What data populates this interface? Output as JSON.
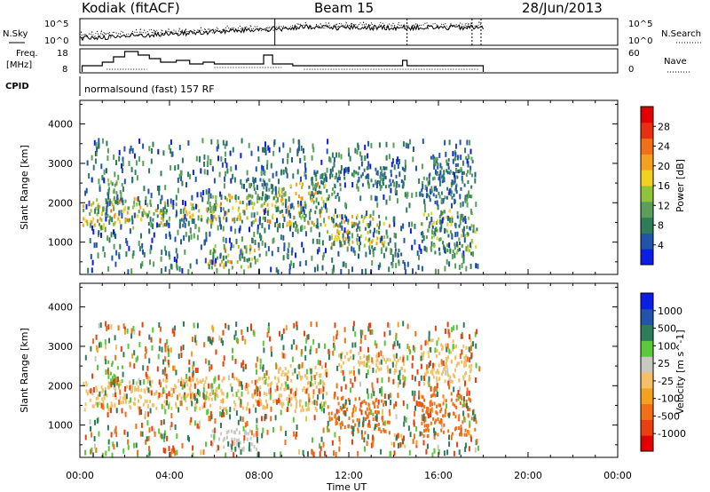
{
  "header": {
    "station": "Kodiak (fitACF)",
    "beam": "Beam 15",
    "date": "28/Jun/2013"
  },
  "strips": {
    "nsky_label": "N.Sky",
    "nsearch_label": "N.Search",
    "freq_label_1": "Freq.",
    "freq_label_2": "[MHz]",
    "nave_label": "Nave",
    "cpid_label": "CPID",
    "cpid_text": "normalsound (fast) 157 RF",
    "noise_ticks": [
      "10^5",
      "10^0"
    ],
    "freq_ticks": [
      "18",
      "8"
    ],
    "nave_ticks": [
      "60",
      "0"
    ]
  },
  "colors": {
    "power": [
      "#0a1ee6",
      "#2255aa",
      "#2e7d5a",
      "#5a9e5a",
      "#8fc43a",
      "#f0d020",
      "#f5a020",
      "#f07018",
      "#e83010",
      "#e00000"
    ],
    "velocity": [
      "#e00000",
      "#e84010",
      "#f07018",
      "#f5a020",
      "#f3c068",
      "#c8c8c0",
      "#5ac83a",
      "#2e7d5a",
      "#2255aa",
      "#0a1ee6"
    ]
  },
  "chart_data": [
    {
      "type": "heatmap",
      "title": "Power",
      "ylabel": "Slant Range [km]",
      "xlabel": "Time UT",
      "x_ticks": [
        "00:00",
        "04:00",
        "08:00",
        "12:00",
        "16:00",
        "20:00",
        "00:00"
      ],
      "y_ticks": [
        "1000",
        "2000",
        "3000",
        "4000"
      ],
      "xlim_hours": [
        0,
        24
      ],
      "ylim_km": [
        180,
        4600
      ],
      "colorbar_label": "Power [dB]",
      "colorbar_ticks": [
        "4",
        "8",
        "12",
        "16",
        "20",
        "24",
        "28"
      ],
      "colorbar_range": [
        0,
        30
      ],
      "regions": [
        {
          "t0": 0.1,
          "t1": 3.0,
          "r0": 1350,
          "r1": 2100,
          "v0": 10,
          "v1": 22
        },
        {
          "t0": 1.2,
          "t1": 1.9,
          "r0": 2000,
          "r1": 2600,
          "v0": 6,
          "v1": 14
        },
        {
          "t0": 3.0,
          "t1": 6.0,
          "r0": 1400,
          "r1": 2000,
          "v0": 6,
          "v1": 20
        },
        {
          "t0": 5.8,
          "t1": 8.8,
          "r0": 1500,
          "r1": 2200,
          "v0": 8,
          "v1": 22
        },
        {
          "t0": 5.6,
          "t1": 8.0,
          "r0": 350,
          "r1": 900,
          "v0": 6,
          "v1": 24
        },
        {
          "t0": 7.4,
          "t1": 8.8,
          "r0": 2100,
          "r1": 2600,
          "v0": 4,
          "v1": 12
        },
        {
          "t0": 8.8,
          "t1": 11.0,
          "r0": 1350,
          "r1": 2500,
          "v0": 6,
          "v1": 22
        },
        {
          "t0": 10.2,
          "t1": 11.6,
          "r0": 2100,
          "r1": 2800,
          "v0": 4,
          "v1": 12
        },
        {
          "t0": 11.5,
          "t1": 14.5,
          "r0": 2400,
          "r1": 2900,
          "v0": 3,
          "v1": 8
        },
        {
          "t0": 11.0,
          "t1": 13.8,
          "r0": 800,
          "r1": 1700,
          "v0": 6,
          "v1": 22
        },
        {
          "t0": 13.8,
          "t1": 14.5,
          "r0": 400,
          "r1": 800,
          "v0": 4,
          "v1": 10
        },
        {
          "t0": 15.2,
          "t1": 17.5,
          "r0": 2000,
          "r1": 3200,
          "v0": 3,
          "v1": 12
        },
        {
          "t0": 15.2,
          "t1": 17.7,
          "r0": 700,
          "r1": 1800,
          "v0": 4,
          "v1": 18
        },
        {
          "t0": 0.2,
          "t1": 17.8,
          "r0": 250,
          "r1": 3600,
          "v0": 2,
          "v1": 12
        }
      ]
    },
    {
      "type": "heatmap",
      "title": "Velocity",
      "ylabel": "Slant Range [km]",
      "xlabel": "Time UT",
      "x_ticks": [
        "00:00",
        "04:00",
        "08:00",
        "12:00",
        "16:00",
        "20:00",
        "00:00"
      ],
      "y_ticks": [
        "1000",
        "2000",
        "3000",
        "4000"
      ],
      "xlim_hours": [
        0,
        24
      ],
      "ylim_km": [
        180,
        4600
      ],
      "colorbar_label": "Velocity [m s^-1]",
      "colorbar_ticks": [
        "1000",
        "500",
        "100",
        "25",
        "-25",
        "-100",
        "-500",
        "-1000"
      ],
      "regions": [
        {
          "t0": 0.1,
          "t1": 3.0,
          "r0": 1350,
          "r1": 2100,
          "v0": -25,
          "v1": 25
        },
        {
          "t0": 1.2,
          "t1": 1.9,
          "r0": 2000,
          "r1": 2600,
          "v0": 100,
          "v1": 500
        },
        {
          "t0": 3.0,
          "t1": 8.8,
          "r0": 1400,
          "r1": 2200,
          "v0": -25,
          "v1": 25
        },
        {
          "t0": 5.8,
          "t1": 8.0,
          "r0": 350,
          "r1": 900,
          "v0": 25,
          "v1": 100
        },
        {
          "t0": 8.8,
          "t1": 11.0,
          "r0": 1350,
          "r1": 2500,
          "v0": -25,
          "v1": 25
        },
        {
          "t0": 11.5,
          "t1": 14.5,
          "r0": 2300,
          "r1": 2900,
          "v0": -25,
          "v1": 25
        },
        {
          "t0": 11.0,
          "t1": 13.8,
          "r0": 800,
          "r1": 1700,
          "v0": -500,
          "v1": -100
        },
        {
          "t0": 13.8,
          "t1": 14.5,
          "r0": 400,
          "r1": 800,
          "v0": -25,
          "v1": 25
        },
        {
          "t0": 15.2,
          "t1": 17.5,
          "r0": 2000,
          "r1": 3200,
          "v0": -25,
          "v1": 25
        },
        {
          "t0": 15.2,
          "t1": 17.7,
          "r0": 700,
          "r1": 1800,
          "v0": -500,
          "v1": -100
        },
        {
          "t0": 0.2,
          "t1": 17.8,
          "r0": 250,
          "r1": 3600,
          "v0": -1000,
          "v1": 1000
        }
      ]
    }
  ]
}
